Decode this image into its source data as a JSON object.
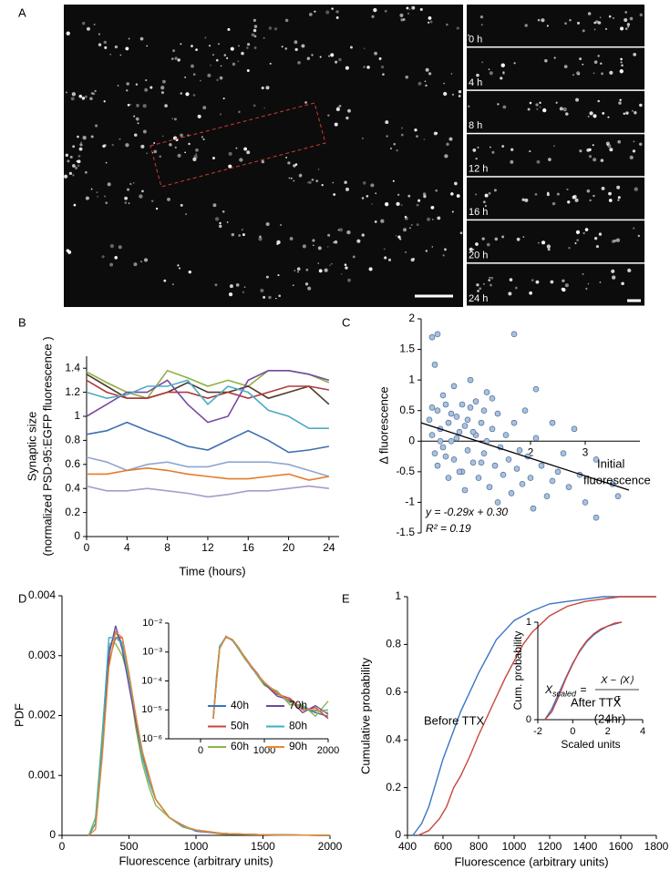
{
  "figure": {
    "panel_labels": [
      "A",
      "B",
      "C",
      "D",
      "E"
    ],
    "time_labels": [
      "0 h",
      "4 h",
      "8 h",
      "12 h",
      "16 h",
      "20 h",
      "24 h"
    ]
  },
  "chart_data": [
    {
      "type": "line",
      "xlabel": "Time (hours)",
      "ylabel": [
        "Synaptic size",
        "(normalized PSD-95:EGFP fluorescence )"
      ],
      "x": [
        0,
        2,
        4,
        6,
        8,
        10,
        12,
        14,
        16,
        18,
        20,
        22,
        24
      ],
      "xlim": [
        0,
        25
      ],
      "xticks": [
        0,
        4,
        8,
        12,
        16,
        20,
        24
      ],
      "ylim": [
        0,
        1.5
      ],
      "yticks": [
        0,
        0.2,
        0.4,
        0.6,
        0.8,
        1,
        1.2,
        1.4
      ],
      "series": [
        {
          "color": "#8db043",
          "values": [
            1.37,
            1.28,
            1.2,
            1.15,
            1.38,
            1.32,
            1.25,
            1.3,
            1.25,
            1.38,
            1.38,
            1.35,
            1.28
          ]
        },
        {
          "color": "#4e3b2a",
          "values": [
            1.35,
            1.25,
            1.15,
            1.15,
            1.2,
            1.28,
            1.2,
            1.2,
            1.25,
            1.15,
            1.2,
            1.25,
            1.1
          ]
        },
        {
          "color": "#b03a3a",
          "values": [
            1.3,
            1.2,
            1.15,
            1.15,
            1.2,
            1.2,
            1.15,
            1.2,
            1.15,
            1.2,
            1.25,
            1.25,
            1.22
          ]
        },
        {
          "color": "#7a4aa0",
          "values": [
            1.0,
            1.1,
            1.2,
            1.2,
            1.3,
            1.1,
            0.95,
            1.0,
            1.3,
            1.38,
            1.38,
            1.35,
            1.3
          ]
        },
        {
          "color": "#4bacc6",
          "values": [
            1.2,
            1.15,
            1.18,
            1.25,
            1.25,
            1.3,
            1.1,
            1.25,
            1.2,
            1.05,
            1.0,
            0.9,
            0.9
          ]
        },
        {
          "color": "#3f6fb0",
          "values": [
            0.85,
            0.88,
            0.95,
            0.88,
            0.82,
            0.75,
            0.72,
            0.8,
            0.88,
            0.8,
            0.7,
            0.72,
            0.75
          ]
        },
        {
          "color": "#8fa6d0",
          "values": [
            0.66,
            0.62,
            0.55,
            0.6,
            0.62,
            0.58,
            0.58,
            0.62,
            0.62,
            0.62,
            0.6,
            0.55,
            0.5
          ]
        },
        {
          "color": "#e37b2a",
          "values": [
            0.52,
            0.52,
            0.55,
            0.57,
            0.55,
            0.52,
            0.5,
            0.48,
            0.48,
            0.5,
            0.52,
            0.47,
            0.5
          ]
        },
        {
          "color": "#a99ac9",
          "values": [
            0.42,
            0.38,
            0.38,
            0.4,
            0.38,
            0.36,
            0.33,
            0.35,
            0.38,
            0.38,
            0.4,
            0.42,
            0.4
          ]
        }
      ]
    },
    {
      "type": "scatter",
      "xlabel": [
        "Initial",
        "fluorescence"
      ],
      "ylabel": [
        "Δ fluorescence"
      ],
      "annotations": [
        "y = -0.29x + 0.30",
        "R² = 0.19"
      ],
      "color": "#a9c1e0",
      "xlim": [
        0,
        4
      ],
      "xticks": [
        2,
        3
      ],
      "ylim": [
        -1.5,
        2
      ],
      "yticks": [
        -1.5,
        -1,
        -0.5,
        0,
        0.5,
        1,
        1.5,
        2
      ],
      "fit_x": [
        0,
        3.8
      ],
      "fit_y": [
        0.3,
        -0.8
      ],
      "x": [
        0.15,
        0.2,
        0.25,
        0.3,
        0.35,
        0.4,
        0.45,
        0.5,
        0.55,
        0.6,
        0.65,
        0.7,
        0.75,
        0.8,
        0.85,
        0.9,
        0.95,
        1.0,
        1.05,
        1.1,
        1.15,
        1.2,
        1.25,
        1.3,
        1.35,
        1.4,
        1.45,
        1.5,
        1.55,
        1.6,
        1.65,
        1.7,
        1.75,
        1.8,
        1.85,
        1.9,
        1.95,
        2.0,
        2.1,
        2.2,
        2.3,
        2.4,
        2.5,
        2.6,
        2.7,
        2.8,
        2.9,
        3.0,
        3.2,
        3.5,
        3.6,
        3.2,
        0.2,
        0.3,
        0.25,
        0.9,
        1.7,
        0.6,
        1.2,
        0.4,
        0.8,
        0.5,
        1.0,
        0.3,
        1.4,
        2.1,
        1.3,
        0.7,
        0.2,
        0.45,
        0.65,
        1.1,
        0.85,
        0.35,
        0.55,
        0.95,
        1.15,
        0.75,
        2.4,
        2.05
      ],
      "values": [
        0.35,
        0.1,
        -0.2,
        0.5,
        0.2,
        -0.1,
        0.6,
        0.3,
        0.0,
        -0.3,
        0.4,
        0.15,
        -0.5,
        0.25,
        -0.15,
        0.55,
        -0.35,
        0.1,
        -0.6,
        0.3,
        -0.2,
        0.0,
        -0.75,
        0.2,
        -0.4,
        0.45,
        -0.1,
        -0.55,
        0.1,
        -0.3,
        -0.85,
        0.3,
        -0.45,
        -0.15,
        -0.7,
        0.5,
        -0.25,
        -0.6,
        0.05,
        -0.4,
        -0.9,
        0.3,
        -0.5,
        -0.2,
        -0.75,
        0.2,
        -0.55,
        -1.0,
        -0.3,
        -0.7,
        -0.9,
        -1.25,
        1.7,
        1.75,
        1.25,
        1.0,
        1.75,
        0.9,
        0.8,
        0.75,
        -0.8,
        -0.6,
        0.65,
        -0.4,
        -1.0,
        0.85,
        0.7,
        -0.5,
        0.55,
        -0.25,
        0.05,
        -0.35,
        0.35,
        0.0,
        0.45,
        0.15,
        0.5,
        0.6,
        -0.65,
        -1.1
      ]
    },
    {
      "type": "line",
      "xlabel": "Fluorescence (arbitrary units)",
      "ylabel": [
        "PDF"
      ],
      "x": [
        200,
        250,
        300,
        350,
        400,
        450,
        500,
        550,
        600,
        650,
        700,
        800,
        900,
        1000,
        1200,
        1500,
        2000
      ],
      "xlim": [
        0,
        2000
      ],
      "xticks": [
        0,
        500,
        1000,
        1500,
        2000
      ],
      "ylim": [
        0,
        0.004
      ],
      "yticks": [
        0,
        0.001,
        0.002,
        0.003,
        0.004
      ],
      "series": [
        {
          "name": "40h",
          "color": "#3a75b5",
          "values": [
            0,
            0.0002,
            0.0016,
            0.0031,
            0.0034,
            0.0032,
            0.0025,
            0.0019,
            0.0013,
            0.0009,
            0.0006,
            0.0003,
            0.00016,
            8e-05,
            3e-05,
            1e-05,
            0
          ]
        },
        {
          "name": "50h",
          "color": "#c8453b",
          "values": [
            0,
            0.0002,
            0.0014,
            0.0029,
            0.0033,
            0.0033,
            0.0027,
            0.002,
            0.0014,
            0.0009,
            0.0006,
            0.0003,
            0.00015,
            9e-05,
            3e-05,
            1e-05,
            0
          ]
        },
        {
          "name": "60h",
          "color": "#8cb54a",
          "values": [
            0,
            0.0003,
            0.0017,
            0.0032,
            0.0032,
            0.003,
            0.0026,
            0.0018,
            0.0012,
            0.0008,
            0.0005,
            0.0003,
            0.00014,
            8e-05,
            2e-05,
            1e-05,
            0
          ]
        },
        {
          "name": "70h",
          "color": "#6b4a96",
          "values": [
            0,
            0.0002,
            0.0015,
            0.003,
            0.0035,
            0.0031,
            0.0025,
            0.0019,
            0.0013,
            0.0009,
            0.0006,
            0.0003,
            0.00017,
            7e-05,
            3e-05,
            1e-05,
            0
          ]
        },
        {
          "name": "80h",
          "color": "#3bb0c9",
          "values": [
            0,
            0.0002,
            0.0016,
            0.0033,
            0.0033,
            0.0032,
            0.0026,
            0.002,
            0.0013,
            0.0009,
            0.0006,
            0.0003,
            0.00015,
            8e-05,
            3e-05,
            1e-05,
            0
          ]
        },
        {
          "name": "90h",
          "color": "#e8872e",
          "values": [
            0,
            0.0001,
            0.0013,
            0.0028,
            0.0034,
            0.0033,
            0.0027,
            0.002,
            0.0014,
            0.001,
            0.0006,
            0.0003,
            0.00016,
            9e-05,
            3e-05,
            1e-05,
            0
          ]
        }
      ]
    },
    {
      "type": "line",
      "log_y": true,
      "x": [
        200,
        250,
        300,
        400,
        500,
        600,
        700,
        800,
        900,
        1000,
        1200,
        1400,
        1600,
        1800,
        2000
      ],
      "xlim": [
        -500,
        2000
      ],
      "xticks": [
        0,
        1000,
        2000
      ],
      "ylim": [
        1e-06,
        0.01
      ],
      "yticks": [
        {
          "value": 1e-06,
          "label": "10⁻⁶"
        },
        {
          "value": 1e-05,
          "label": "10⁻⁵"
        },
        {
          "value": 0.0001,
          "label": "10⁻⁴"
        },
        {
          "value": 0.001,
          "label": "10⁻³"
        },
        {
          "value": 0.01,
          "label": "10⁻²"
        }
      ],
      "series": [
        {
          "color": "#3a75b5",
          "values": [
            5e-06,
            0.0001,
            0.0015,
            0.0034,
            0.0026,
            0.0013,
            0.0006,
            0.0003,
            0.00015,
            8e-05,
            4e-05,
            2e-05,
            1.2e-05,
            8e-06,
            6e-06
          ]
        },
        {
          "color": "#c8453b",
          "values": [
            6e-06,
            0.00012,
            0.0014,
            0.0033,
            0.0027,
            0.0014,
            0.0006,
            0.00028,
            0.00016,
            9e-05,
            3.5e-05,
            2.5e-05,
            1e-05,
            1.2e-05,
            5e-06
          ]
        },
        {
          "color": "#8cb54a",
          "values": [
            5e-06,
            0.00015,
            0.0016,
            0.0032,
            0.0026,
            0.0012,
            0.00055,
            0.0003,
            0.00014,
            7e-05,
            4.5e-05,
            1.5e-05,
            1.5e-05,
            6e-06,
            2e-05
          ]
        },
        {
          "color": "#6b4a96",
          "values": [
            5e-06,
            0.0001,
            0.0015,
            0.0035,
            0.0025,
            0.0013,
            0.00065,
            0.00032,
            0.00017,
            8e-05,
            3e-05,
            2.2e-05,
            8e-06,
            1.4e-05,
            7e-06
          ]
        },
        {
          "color": "#3bb0c9",
          "values": [
            6e-06,
            0.00011,
            0.0016,
            0.0033,
            0.0026,
            0.0013,
            0.0006,
            0.00029,
            0.00015,
            8.5e-05,
            4e-05,
            1.8e-05,
            1.3e-05,
            9e-06,
            1e-05
          ]
        },
        {
          "color": "#e8872e",
          "values": [
            5e-06,
            9e-05,
            0.0013,
            0.0034,
            0.0027,
            0.0014,
            0.00062,
            0.00031,
            0.00016,
            9e-05,
            3.8e-05,
            2e-05,
            1.1e-05,
            1e-05,
            8e-06
          ]
        }
      ]
    },
    {
      "type": "line",
      "xlabel": "Fluorescence (arbitrary units)",
      "ylabel": [
        "Cumulative probability"
      ],
      "annotations": [
        "(24hr)"
      ],
      "xlim": [
        400,
        1800
      ],
      "xticks": [
        400,
        600,
        800,
        1000,
        1200,
        1400,
        1600,
        1800
      ],
      "ylim": [
        0,
        1
      ],
      "yticks": [
        0,
        0.2,
        0.4,
        0.6,
        0.8,
        1
      ],
      "series": [
        {
          "name": "Before TTX",
          "color": "#3a75c4",
          "x": [
            430,
            480,
            520,
            560,
            600,
            650,
            700,
            750,
            800,
            850,
            900,
            950,
            1000,
            1100,
            1200,
            1300,
            1400,
            1500,
            1600,
            1700,
            1800
          ],
          "values": [
            0,
            0.05,
            0.12,
            0.22,
            0.32,
            0.42,
            0.52,
            0.6,
            0.68,
            0.75,
            0.82,
            0.86,
            0.9,
            0.94,
            0.97,
            0.98,
            0.99,
            1,
            1,
            1,
            1
          ]
        },
        {
          "name": "After TTX",
          "color": "#c8453b",
          "x": [
            460,
            520,
            580,
            620,
            660,
            700,
            750,
            800,
            850,
            900,
            950,
            1000,
            1050,
            1100,
            1200,
            1300,
            1400,
            1500,
            1600,
            1700,
            1800
          ],
          "values": [
            0,
            0.02,
            0.07,
            0.12,
            0.2,
            0.25,
            0.33,
            0.42,
            0.5,
            0.58,
            0.66,
            0.73,
            0.8,
            0.85,
            0.92,
            0.96,
            0.98,
            0.99,
            1,
            1,
            1
          ]
        }
      ]
    },
    {
      "type": "line",
      "xlabel": "Scaled units",
      "ylabel": [
        "Cum. probability"
      ],
      "formula": {
        "lhs": "X",
        "sub": "scaled",
        "eq": "=",
        "num": "X − ⟨X⟩",
        "den": "σ"
      },
      "x": [
        -1.6,
        -1.2,
        -0.8,
        -0.4,
        0,
        0.4,
        0.8,
        1.2,
        1.6,
        2,
        2.4,
        2.8
      ],
      "xlim": [
        -2,
        4
      ],
      "xticks": [
        -2,
        0,
        2,
        4
      ],
      "ylim": [
        0,
        1
      ],
      "yticks": [
        0,
        1
      ],
      "series": [
        {
          "color": "#3a75c4",
          "values": [
            0,
            0.11,
            0.27,
            0.43,
            0.58,
            0.7,
            0.8,
            0.87,
            0.92,
            0.96,
            0.98,
            1
          ]
        },
        {
          "color": "#c8453b",
          "values": [
            0,
            0.08,
            0.24,
            0.42,
            0.57,
            0.71,
            0.81,
            0.88,
            0.93,
            0.96,
            0.99,
            1
          ]
        }
      ]
    }
  ]
}
